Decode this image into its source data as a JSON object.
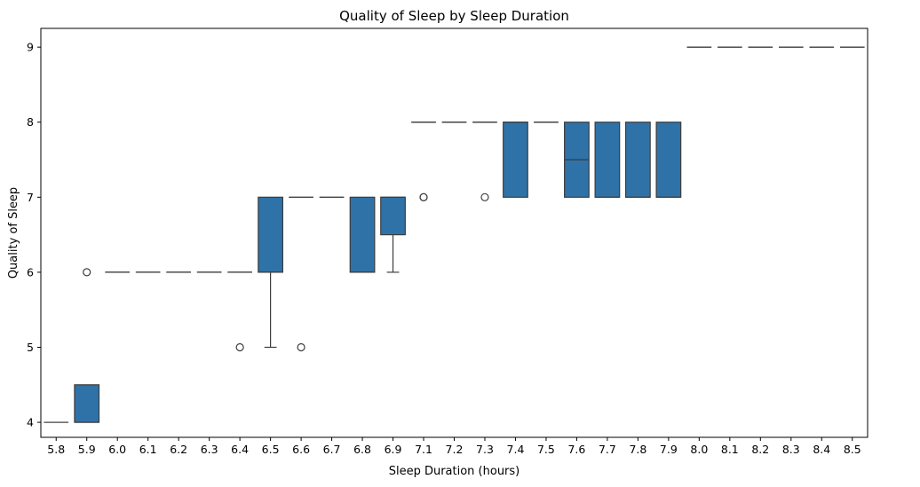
{
  "chart_data": {
    "type": "box",
    "title": "Quality of Sleep by Sleep Duration",
    "xlabel": "Sleep Duration (hours)",
    "ylabel": "Quality of Sleep",
    "ylim": [
      3.8,
      9.25
    ],
    "yticks": [
      "4",
      "5",
      "6",
      "7",
      "8",
      "9"
    ],
    "grid": false,
    "box_color": "#2f72a8",
    "edge_color": "#3d3d3d",
    "boxes": [
      {
        "category": "5.8",
        "q1": 4,
        "median": 4,
        "q3": 4,
        "whisker_low": 4,
        "whisker_high": 4,
        "outliers": []
      },
      {
        "category": "5.9",
        "q1": 4,
        "median": 4,
        "q3": 4.5,
        "whisker_low": 4,
        "whisker_high": 4.5,
        "outliers": [
          6
        ]
      },
      {
        "category": "6.0",
        "q1": 6,
        "median": 6,
        "q3": 6,
        "whisker_low": 6,
        "whisker_high": 6,
        "outliers": []
      },
      {
        "category": "6.1",
        "q1": 6,
        "median": 6,
        "q3": 6,
        "whisker_low": 6,
        "whisker_high": 6,
        "outliers": []
      },
      {
        "category": "6.2",
        "q1": 6,
        "median": 6,
        "q3": 6,
        "whisker_low": 6,
        "whisker_high": 6,
        "outliers": []
      },
      {
        "category": "6.3",
        "q1": 6,
        "median": 6,
        "q3": 6,
        "whisker_low": 6,
        "whisker_high": 6,
        "outliers": []
      },
      {
        "category": "6.4",
        "q1": 6,
        "median": 6,
        "q3": 6,
        "whisker_low": 6,
        "whisker_high": 6,
        "outliers": [
          5
        ]
      },
      {
        "category": "6.5",
        "q1": 6,
        "median": 6,
        "q3": 7,
        "whisker_low": 5,
        "whisker_high": 7,
        "outliers": []
      },
      {
        "category": "6.6",
        "q1": 7,
        "median": 7,
        "q3": 7,
        "whisker_low": 7,
        "whisker_high": 7,
        "outliers": [
          5
        ]
      },
      {
        "category": "6.7",
        "q1": 7,
        "median": 7,
        "q3": 7,
        "whisker_low": 7,
        "whisker_high": 7,
        "outliers": []
      },
      {
        "category": "6.8",
        "q1": 6,
        "median": 6,
        "q3": 7,
        "whisker_low": 6,
        "whisker_high": 7,
        "outliers": []
      },
      {
        "category": "6.9",
        "q1": 6.5,
        "median": 7,
        "q3": 7,
        "whisker_low": 6,
        "whisker_high": 7,
        "outliers": []
      },
      {
        "category": "7.1",
        "q1": 8,
        "median": 8,
        "q3": 8,
        "whisker_low": 8,
        "whisker_high": 8,
        "outliers": [
          7,
          7
        ]
      },
      {
        "category": "7.2",
        "q1": 8,
        "median": 8,
        "q3": 8,
        "whisker_low": 8,
        "whisker_high": 8,
        "outliers": []
      },
      {
        "category": "7.3",
        "q1": 8,
        "median": 8,
        "q3": 8,
        "whisker_low": 8,
        "whisker_high": 8,
        "outliers": [
          7
        ]
      },
      {
        "category": "7.4",
        "q1": 7,
        "median": 8,
        "q3": 8,
        "whisker_low": 7,
        "whisker_high": 8,
        "outliers": []
      },
      {
        "category": "7.5",
        "q1": 8,
        "median": 8,
        "q3": 8,
        "whisker_low": 8,
        "whisker_high": 8,
        "outliers": []
      },
      {
        "category": "7.6",
        "q1": 7,
        "median": 7.5,
        "q3": 8,
        "whisker_low": 7,
        "whisker_high": 8,
        "outliers": []
      },
      {
        "category": "7.7",
        "q1": 7,
        "median": 7,
        "q3": 8,
        "whisker_low": 7,
        "whisker_high": 8,
        "outliers": []
      },
      {
        "category": "7.8",
        "q1": 7,
        "median": 7,
        "q3": 8,
        "whisker_low": 7,
        "whisker_high": 8,
        "outliers": []
      },
      {
        "category": "7.9",
        "q1": 7,
        "median": 7,
        "q3": 8,
        "whisker_low": 7,
        "whisker_high": 8,
        "outliers": []
      },
      {
        "category": "8.0",
        "q1": 9,
        "median": 9,
        "q3": 9,
        "whisker_low": 9,
        "whisker_high": 9,
        "outliers": []
      },
      {
        "category": "8.1",
        "q1": 9,
        "median": 9,
        "q3": 9,
        "whisker_low": 9,
        "whisker_high": 9,
        "outliers": []
      },
      {
        "category": "8.2",
        "q1": 9,
        "median": 9,
        "q3": 9,
        "whisker_low": 9,
        "whisker_high": 9,
        "outliers": []
      },
      {
        "category": "8.3",
        "q1": 9,
        "median": 9,
        "q3": 9,
        "whisker_low": 9,
        "whisker_high": 9,
        "outliers": []
      },
      {
        "category": "8.4",
        "q1": 9,
        "median": 9,
        "q3": 9,
        "whisker_low": 9,
        "whisker_high": 9,
        "outliers": []
      },
      {
        "category": "8.5",
        "q1": 9,
        "median": 9,
        "q3": 9,
        "whisker_low": 9,
        "whisker_high": 9,
        "outliers": []
      }
    ]
  }
}
